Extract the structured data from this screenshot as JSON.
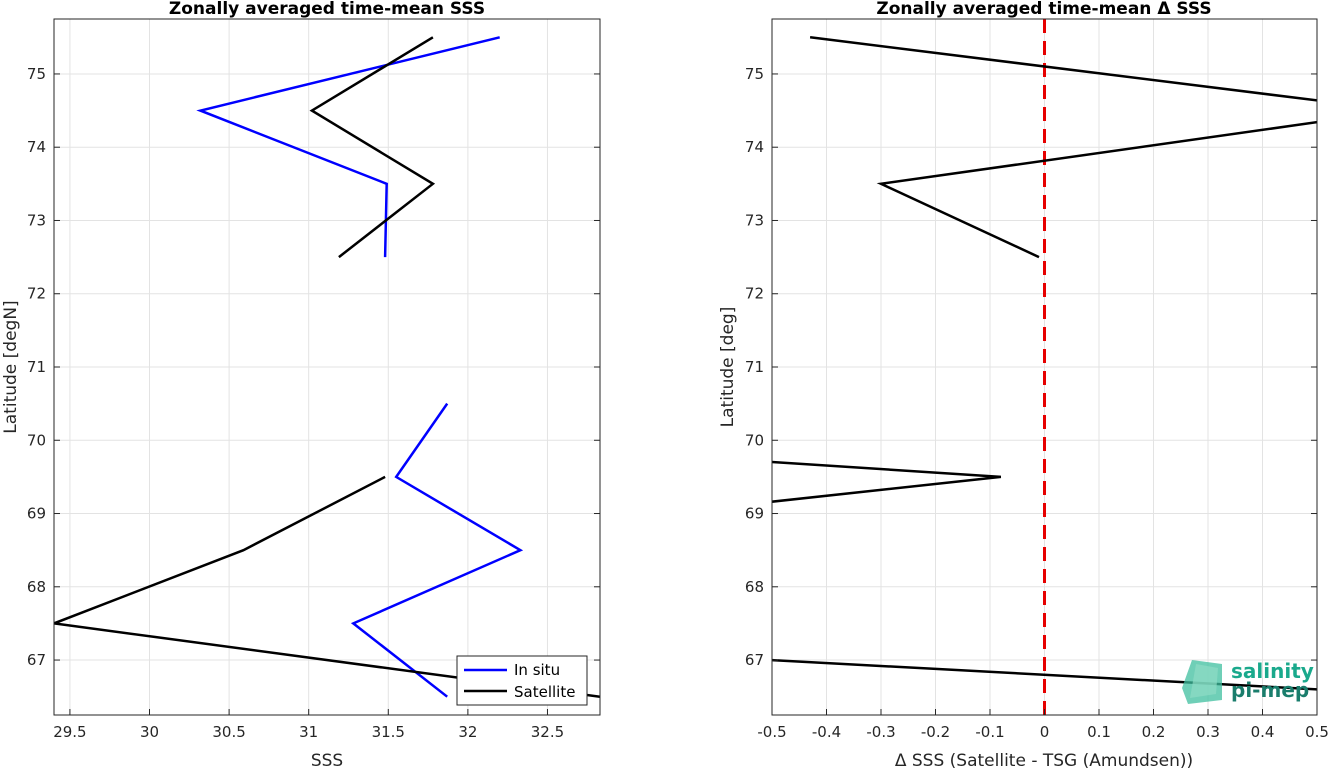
{
  "chart_data": [
    {
      "type": "line",
      "title": "Zonally averaged time-mean SSS",
      "xlabel": "SSS",
      "ylabel": "Latitude [degN]",
      "xlim": [
        29.4,
        32.83
      ],
      "ylim": [
        66.25,
        75.75
      ],
      "xticks": [
        "29.5",
        "30",
        "30.5",
        "31",
        "31.5",
        "32",
        "32.5"
      ],
      "yticks": [
        "67",
        "68",
        "69",
        "70",
        "71",
        "72",
        "73",
        "74",
        "75"
      ],
      "grid": true,
      "legend_position": "bottom-right",
      "series": [
        {
          "name": "In situ",
          "color": "#0000ff",
          "points": [
            [
              31.48,
              72.5
            ],
            [
              31.49,
              73.5
            ],
            [
              30.32,
              74.5
            ],
            [
              32.2,
              75.5
            ],
            null,
            [
              31.87,
              66.5
            ],
            [
              31.28,
              67.5
            ],
            [
              32.33,
              68.5
            ],
            [
              31.55,
              69.5
            ],
            [
              31.87,
              70.5
            ]
          ]
        },
        {
          "name": "Satellite",
          "color": "#000000",
          "points": [
            [
              31.19,
              72.5
            ],
            [
              31.78,
              73.5
            ],
            [
              31.02,
              74.5
            ],
            [
              31.78,
              75.5
            ],
            null,
            [
              32.83,
              66.5
            ],
            [
              29.4,
              67.5
            ],
            [
              30.59,
              68.5
            ],
            [
              31.48,
              69.5
            ]
          ]
        }
      ]
    },
    {
      "type": "line",
      "title": "Zonally averaged time-mean Δ SSS",
      "xlabel": "Δ SSS (Satellite - TSG (Amundsen))",
      "ylabel": "Latitude [deg]",
      "xlim": [
        -0.5,
        0.5
      ],
      "ylim": [
        66.25,
        75.75
      ],
      "xticks": [
        "-0.5",
        "-0.4",
        "-0.3",
        "-0.2",
        "-0.1",
        "0",
        "0.1",
        "0.2",
        "0.3",
        "0.4",
        "0.5"
      ],
      "yticks": [
        "67",
        "68",
        "69",
        "70",
        "71",
        "72",
        "73",
        "74",
        "75"
      ],
      "grid": true,
      "reference_line": {
        "x": 0,
        "color": "#e60000",
        "style": "dashed"
      },
      "series": [
        {
          "color": "#000000",
          "points": [
            [
              -0.01,
              72.5
            ],
            [
              -0.3,
              73.5
            ],
            [
              0.65,
              74.5
            ],
            [
              -0.43,
              75.5
            ],
            null,
            [
              -0.7,
              69.0
            ],
            [
              -0.08,
              69.5
            ],
            [
              -0.7,
              69.8
            ],
            null,
            [
              -0.5,
              67.0
            ],
            [
              0.5,
              66.6
            ]
          ]
        }
      ]
    }
  ],
  "logo": {
    "line1": "salinity",
    "line2": "pi-mep",
    "color1": "#1aa98c",
    "color2": "#1a7d6c"
  }
}
